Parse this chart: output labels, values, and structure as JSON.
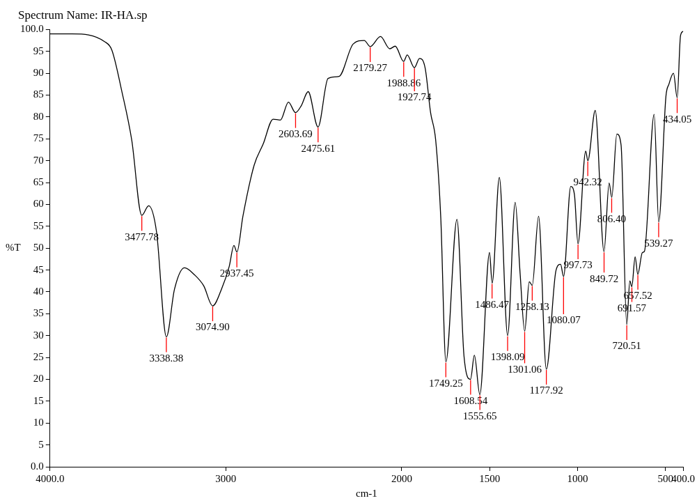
{
  "chart_data": {
    "type": "line",
    "title": "Spectrum Name: IR-HA.sp",
    "xlabel": "cm-1",
    "ylabel": "%T",
    "xlim": [
      4000,
      400
    ],
    "ylim": [
      0,
      100
    ],
    "xticks": [
      {
        "value": 4000,
        "label": "4000.0"
      },
      3000,
      2000,
      1500,
      1000,
      500,
      {
        "value": 400,
        "label": "400.0"
      }
    ],
    "yticks": [
      {
        "value": 0,
        "label": "0.0"
      },
      5,
      10,
      15,
      20,
      25,
      30,
      35,
      40,
      45,
      50,
      55,
      60,
      65,
      70,
      75,
      80,
      85,
      90,
      95,
      {
        "value": 100,
        "label": "100.0"
      }
    ],
    "grid": false,
    "legend": false,
    "marker": "none",
    "line_style": "solid",
    "series": [
      {
        "color": "#000000",
        "x": [
          4000,
          3875,
          3688,
          3648,
          3591,
          3535,
          3478,
          3439,
          3394,
          3338,
          3292,
          3235,
          3178,
          3126,
          3075,
          3025,
          2981,
          2954,
          2937,
          2903,
          2839,
          2788,
          2731,
          2690,
          2644,
          2604,
          2571,
          2532,
          2476,
          2419,
          2356,
          2276,
          2213,
          2179,
          2121,
          2068,
          2037,
          1989,
          1969,
          1928,
          1899,
          1867,
          1836,
          1807,
          1778,
          1749,
          1686,
          1646,
          1609,
          1587,
          1556,
          1501,
          1486,
          1445,
          1398,
          1355,
          1327,
          1301,
          1275,
          1258,
          1222,
          1178,
          1123,
          1097,
          1080,
          1039,
          1018,
          998,
          954,
          942,
          900,
          850,
          821,
          806,
          777,
          753,
          721,
          703,
          692,
          673,
          658,
          632,
          620,
          565,
          539,
          498,
          481,
          455,
          434,
          415,
          400
        ],
        "values": [
          99.0,
          99.0,
          97.2,
          95.3,
          85.8,
          74.7,
          57.5,
          59.7,
          53.7,
          29.7,
          40.6,
          45.5,
          43.9,
          41.4,
          36.8,
          40.6,
          45.8,
          50.6,
          49.1,
          57.3,
          69.0,
          73.8,
          79.5,
          79.3,
          83.4,
          81.0,
          82.6,
          85.8,
          77.7,
          88.8,
          89.3,
          96.7,
          97.5,
          96.1,
          98.4,
          95.6,
          96.2,
          92.7,
          94.2,
          91.3,
          93.4,
          91.2,
          81.0,
          74.7,
          56.9,
          24.0,
          56.6,
          25.3,
          20.0,
          25.5,
          16.5,
          49.0,
          42.0,
          66.2,
          30.0,
          60.5,
          44.2,
          31.0,
          42.3,
          41.5,
          57.3,
          22.3,
          44.9,
          46.3,
          43.5,
          64.1,
          62.2,
          51.0,
          72.2,
          70.0,
          81.5,
          49.2,
          64.9,
          61.6,
          76.1,
          73.6,
          32.5,
          42.5,
          41.2,
          48.0,
          44.0,
          49.0,
          49.3,
          80.6,
          56.0,
          84.7,
          87.5,
          90.0,
          84.4,
          98.6,
          99.6
        ]
      }
    ],
    "annotations": [
      {
        "text": "3477.78",
        "x": 3477.78,
        "y": 57.5
      },
      {
        "text": "3338.38",
        "x": 3338.38,
        "y": 29.7
      },
      {
        "text": "3074.90",
        "x": 3074.9,
        "y": 36.8
      },
      {
        "text": "2937.45",
        "x": 2937.45,
        "y": 49.1
      },
      {
        "text": "2603.69",
        "x": 2603.69,
        "y": 81.0
      },
      {
        "text": "2475.61",
        "x": 2475.61,
        "y": 77.7
      },
      {
        "text": "2179.27",
        "x": 2179.27,
        "y": 96.1
      },
      {
        "text": "1988.86",
        "x": 1988.86,
        "y": 92.7
      },
      {
        "text": "1927.74",
        "x": 1927.74,
        "y": 91.3
      },
      {
        "text": "1749.25",
        "x": 1749.25,
        "y": 24.0
      },
      {
        "text": "1608.54",
        "x": 1608.54,
        "y": 20.0
      },
      {
        "text": "1555.65",
        "x": 1555.65,
        "y": 16.5
      },
      {
        "text": "1486.47",
        "x": 1486.47,
        "y": 42.0
      },
      {
        "text": "1398.09",
        "x": 1398.09,
        "y": 30.0
      },
      {
        "text": "1301.06",
        "x": 1301.06,
        "y": 31.0
      },
      {
        "text": "1258.13",
        "x": 1258.13,
        "y": 41.5
      },
      {
        "text": "1177.92",
        "x": 1177.92,
        "y": 22.3
      },
      {
        "text": "1080.07",
        "x": 1080.07,
        "y": 43.5
      },
      {
        "text": "997.73",
        "x": 997.73,
        "y": 51.0
      },
      {
        "text": "942.32",
        "x": 942.32,
        "y": 70.0
      },
      {
        "text": "849.72",
        "x": 849.72,
        "y": 49.2
      },
      {
        "text": "806.40",
        "x": 806.4,
        "y": 61.6
      },
      {
        "text": "720.51",
        "x": 720.51,
        "y": 32.5
      },
      {
        "text": "691.57",
        "x": 691.57,
        "y": 41.2
      },
      {
        "text": "657.52",
        "x": 657.52,
        "y": 44.0
      },
      {
        "text": "539.27",
        "x": 539.27,
        "y": 56.0
      },
      {
        "text": "434.05",
        "x": 434.05,
        "y": 84.4
      }
    ]
  }
}
